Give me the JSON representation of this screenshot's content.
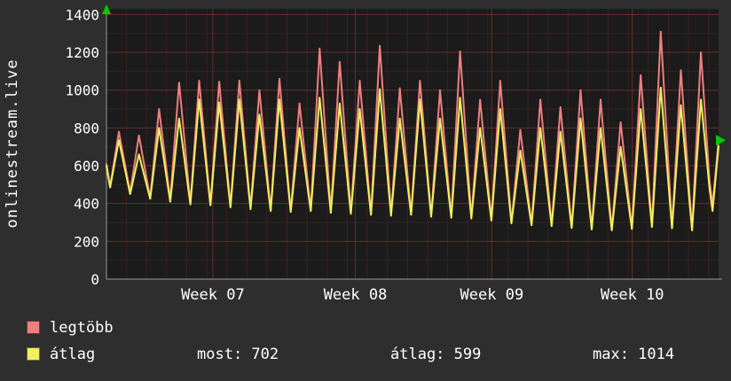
{
  "vertical_title": "onlinestream.live",
  "chart_data": {
    "type": "line",
    "title": "onlinestream.live",
    "ylim": [
      0,
      1430
    ],
    "xlim_days": [
      0,
      30.5
    ],
    "grid": true,
    "legend_position": "bottom",
    "y_axis": {
      "ticks": [
        0,
        200,
        400,
        600,
        800,
        1000,
        1200,
        1400
      ]
    },
    "x_axis": {
      "tick_labels": [
        "Week 07",
        "Week 08",
        "Week 09",
        "Week 10"
      ],
      "tick_positions_day": [
        5.3,
        12.4,
        19.2,
        26.2
      ]
    },
    "colors": {
      "background": "#2e2e2e",
      "plot_bg": "#1b1b1b",
      "grid_major": "rgba(255,70,70,0.35)",
      "grid_minor": "rgba(255,70,70,0.12)",
      "axis": "#9a9a9a",
      "arrow": "#00cc00",
      "text": "#ffffff"
    },
    "series": [
      {
        "name": "legtöbb",
        "color": "#ee7f7f",
        "start": 610,
        "daily_low_high": [
          [
            490,
            780
          ],
          [
            460,
            760
          ],
          [
            430,
            900
          ],
          [
            420,
            1040
          ],
          [
            400,
            1050
          ],
          [
            395,
            1045
          ],
          [
            385,
            1050
          ],
          [
            375,
            1000
          ],
          [
            365,
            1060
          ],
          [
            360,
            930
          ],
          [
            365,
            1220
          ],
          [
            355,
            1150
          ],
          [
            350,
            1050
          ],
          [
            345,
            1235
          ],
          [
            340,
            1010
          ],
          [
            345,
            1050
          ],
          [
            335,
            1000
          ],
          [
            330,
            1205
          ],
          [
            325,
            950
          ],
          [
            315,
            1050
          ],
          [
            300,
            790
          ],
          [
            290,
            950
          ],
          [
            285,
            910
          ],
          [
            275,
            1000
          ],
          [
            268,
            950
          ],
          [
            262,
            830
          ],
          [
            270,
            1080
          ],
          [
            280,
            1310
          ],
          [
            272,
            1105
          ],
          [
            262,
            1200
          ]
        ],
        "tail": [
          [
            30.05,
            520
          ],
          [
            30.2,
            390
          ],
          [
            30.5,
            735
          ]
        ]
      },
      {
        "name": "átlag",
        "color": "#f0f060",
        "start": 600,
        "daily_low_high": [
          [
            485,
            735
          ],
          [
            450,
            660
          ],
          [
            425,
            800
          ],
          [
            410,
            850
          ],
          [
            395,
            950
          ],
          [
            390,
            935
          ],
          [
            380,
            950
          ],
          [
            370,
            870
          ],
          [
            360,
            950
          ],
          [
            355,
            800
          ],
          [
            360,
            960
          ],
          [
            350,
            930
          ],
          [
            345,
            900
          ],
          [
            340,
            1005
          ],
          [
            335,
            850
          ],
          [
            340,
            950
          ],
          [
            330,
            850
          ],
          [
            325,
            960
          ],
          [
            320,
            800
          ],
          [
            310,
            900
          ],
          [
            295,
            680
          ],
          [
            285,
            800
          ],
          [
            280,
            780
          ],
          [
            270,
            850
          ],
          [
            262,
            800
          ],
          [
            258,
            700
          ],
          [
            265,
            900
          ],
          [
            275,
            1014
          ],
          [
            268,
            920
          ],
          [
            258,
            950
          ]
        ],
        "tail": [
          [
            30.05,
            480
          ],
          [
            30.2,
            360
          ],
          [
            30.5,
            702
          ]
        ]
      }
    ],
    "stats": {
      "most": "most: 702",
      "atlag": "átlag: 599",
      "max": "max: 1014"
    }
  }
}
